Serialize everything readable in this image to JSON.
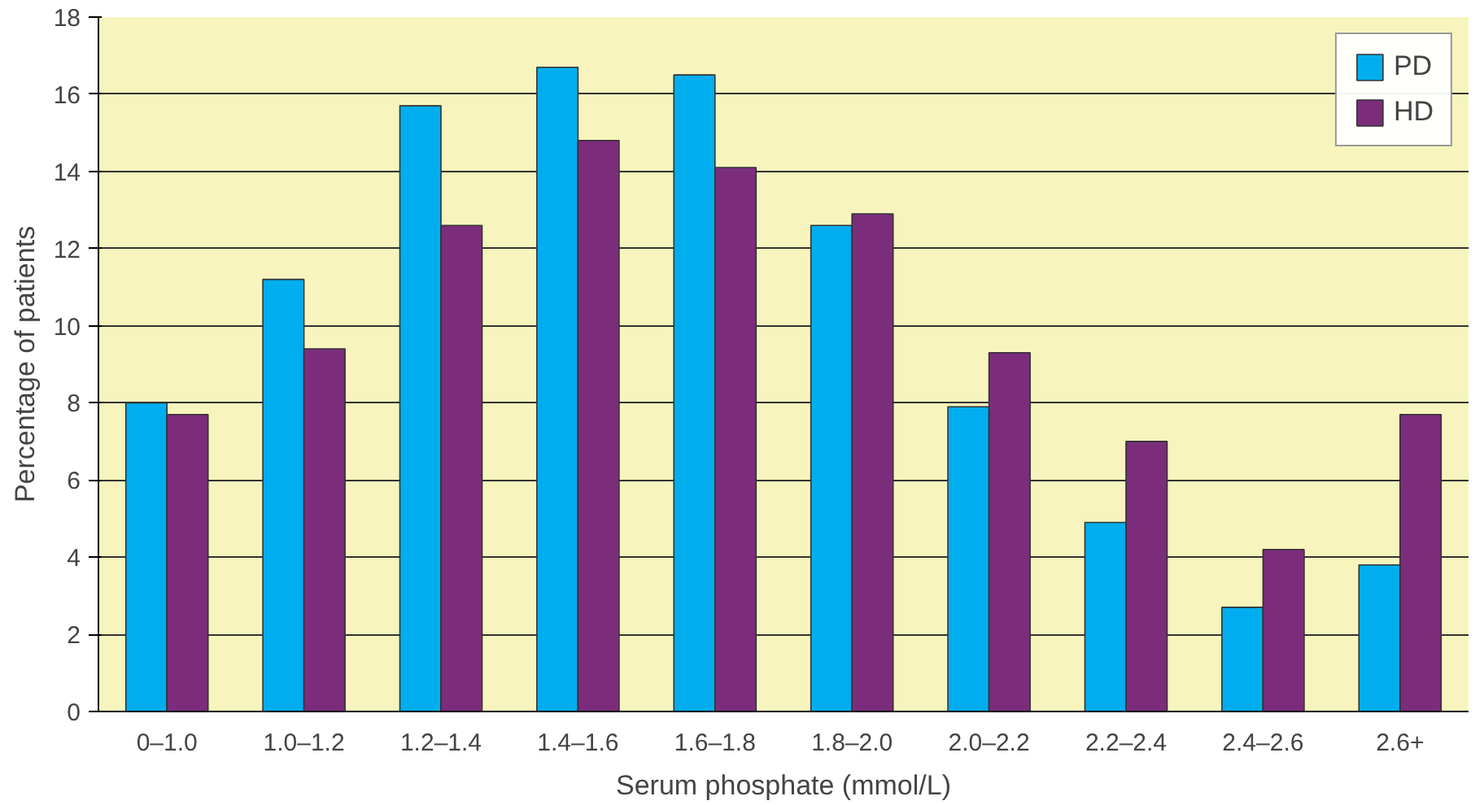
{
  "chart_data": {
    "type": "bar",
    "xlabel": "Serum phosphate (mmol/L)",
    "ylabel": "Percentage of patients",
    "categories": [
      "0–1.0",
      "1.0–1.2",
      "1.2–1.4",
      "1.4–1.6",
      "1.6–1.8",
      "1.8–2.0",
      "2.0–2.2",
      "2.2–2.4",
      "2.4–2.6",
      "2.6+"
    ],
    "series": [
      {
        "name": "PD",
        "color": "#00aeef",
        "values": [
          8.0,
          11.2,
          15.7,
          16.7,
          16.5,
          12.6,
          7.9,
          4.9,
          2.7,
          3.8
        ]
      },
      {
        "name": "HD",
        "color": "#7b2d7b",
        "values": [
          7.7,
          9.4,
          12.6,
          14.8,
          14.1,
          12.9,
          9.3,
          7.0,
          4.2,
          7.7
        ]
      }
    ],
    "ylim": [
      0,
      18
    ],
    "yticks": [
      0,
      2,
      4,
      6,
      8,
      10,
      12,
      14,
      16,
      18
    ],
    "grid": "y",
    "legend": "top right"
  }
}
